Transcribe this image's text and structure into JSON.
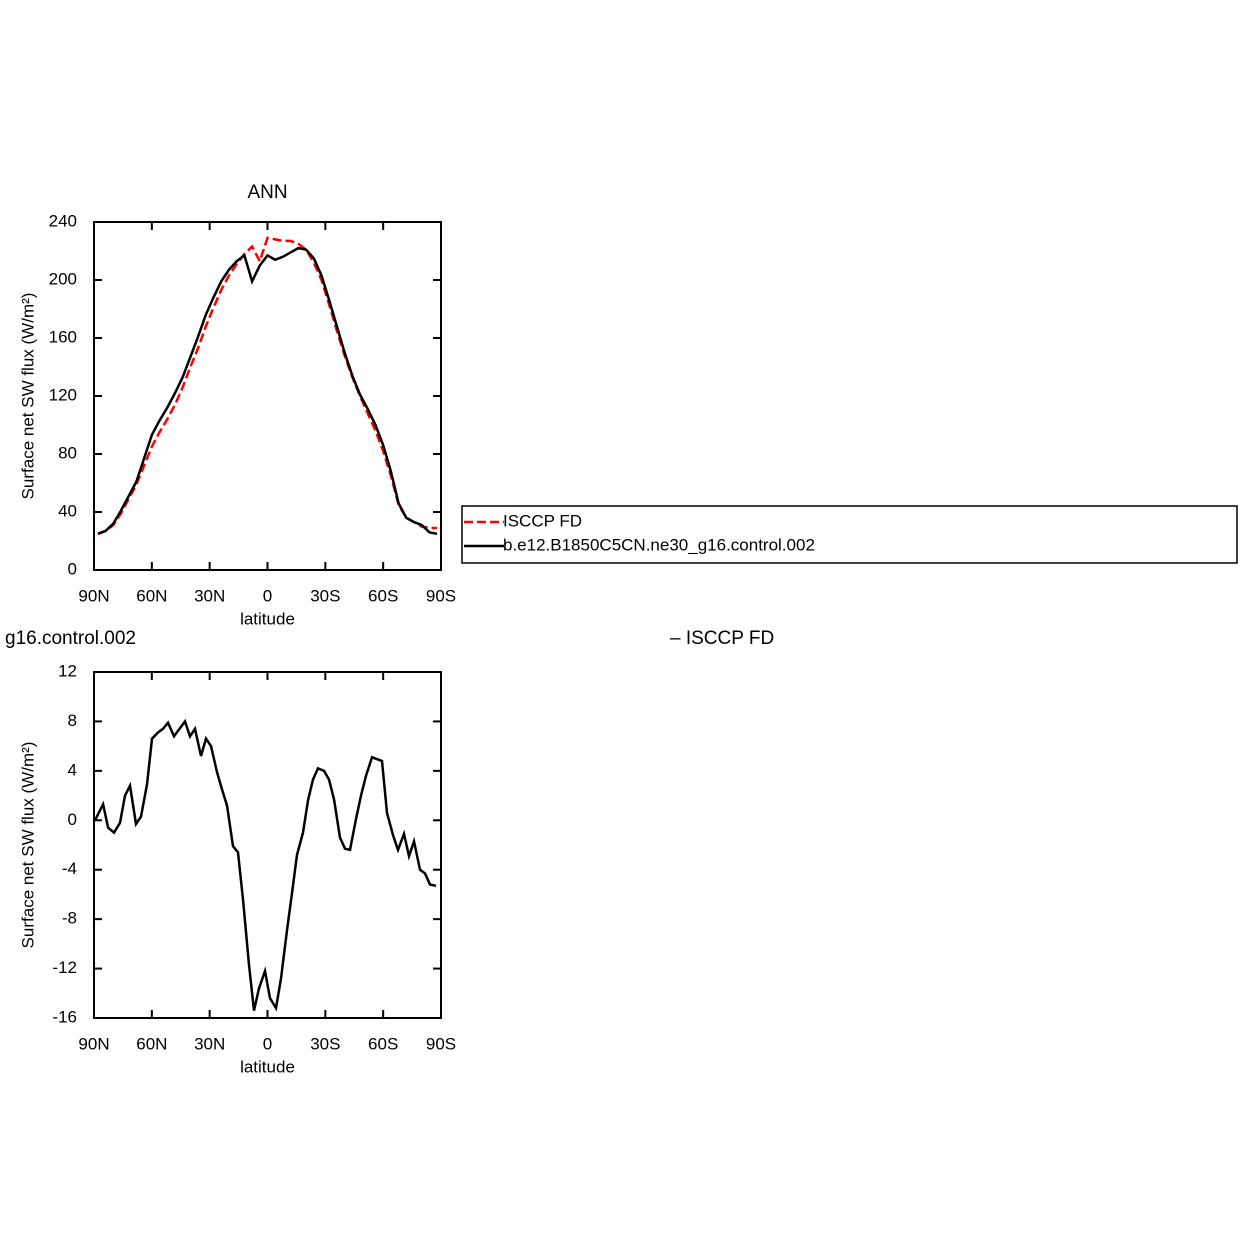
{
  "chart_data": [
    {
      "type": "line",
      "title": "ANN",
      "xlabel": "latitude",
      "ylabel": "Surface net SW flux (W/m²)",
      "x": [
        88,
        84,
        80,
        76,
        72,
        68,
        64,
        60,
        56,
        52,
        48,
        44,
        40,
        36,
        32,
        28,
        24,
        20,
        16,
        12,
        8,
        4,
        0,
        -4,
        -8,
        -12,
        -16,
        -20,
        -24,
        -28,
        -32,
        -36,
        -40,
        -44,
        -48,
        -52,
        -56,
        -60,
        -64,
        -68,
        -72,
        -76,
        -80,
        -84,
        -88
      ],
      "series": [
        {
          "name": "ISCCP FD",
          "color": "#ff0000",
          "dash": true,
          "values": [
            25,
            27,
            31,
            39,
            49,
            59,
            72,
            85,
            95,
            104,
            114,
            126,
            140,
            153,
            168,
            181,
            193,
            203,
            211,
            218,
            223,
            213,
            229,
            228,
            227,
            227,
            225,
            221,
            212,
            200,
            183,
            165,
            148,
            133,
            120,
            108,
            96,
            82,
            65,
            45,
            36,
            33,
            30,
            29,
            29
          ]
        },
        {
          "name": "b.e12.B1850C5CN.ne30_g16.control.002",
          "color": "#000000",
          "dash": false,
          "values": [
            25,
            27,
            32,
            41,
            51,
            61,
            77,
            93,
            103,
            112,
            122,
            133,
            147,
            161,
            176,
            188,
            199,
            207,
            213,
            217,
            199,
            210,
            217,
            214,
            216,
            219,
            222,
            221,
            215,
            203,
            186,
            168,
            150,
            134,
            121,
            111,
            100,
            86,
            68,
            46,
            36,
            33,
            31,
            26,
            25
          ]
        }
      ],
      "xlim": [
        90,
        -90
      ],
      "xticks": [
        {
          "value": 90,
          "label": "90N"
        },
        {
          "value": 60,
          "label": "60N"
        },
        {
          "value": 30,
          "label": "30N"
        },
        0,
        {
          "value": -30,
          "label": "30S"
        },
        {
          "value": -60,
          "label": "60S"
        },
        {
          "value": -90,
          "label": "90S"
        }
      ],
      "ylim": [
        0,
        240
      ],
      "yticks": [
        0,
        40,
        80,
        120,
        160,
        200,
        240
      ],
      "legend": "right"
    },
    {
      "type": "line",
      "subtitle_left": "g16.control.002",
      "subtitle_right": "– ISCCP FD",
      "xlabel": "latitude",
      "ylabel": "Surface net SW flux (W/m²)",
      "color": "#000000",
      "x": [
        89.5,
        85.3,
        82.7,
        79.6,
        76.5,
        73.9,
        71.3,
        68.2,
        65.6,
        62.5,
        59.9,
        56.8,
        54.2,
        51.6,
        48.5,
        42.8,
        40.2,
        37.6,
        34.5,
        31.9,
        29.3,
        26.2,
        23.6,
        21.0,
        17.9,
        15.3,
        12.7,
        9.6,
        7.0,
        4.4,
        1.3,
        -1.3,
        -4.4,
        -7.0,
        -10.1,
        -12.7,
        -15.3,
        -18.4,
        -21.0,
        -23.6,
        -26.2,
        -29.3,
        -31.9,
        -34.5,
        -37.6,
        -40.2,
        -42.8,
        -45.9,
        -48.5,
        -51.1,
        -54.2,
        -59.4,
        -62.0,
        -65.1,
        -67.7,
        -70.8,
        -73.4,
        -76.0,
        -79.1,
        -81.7,
        -84.3,
        -87.4
      ],
      "values": [
        0.0,
        1.3,
        -0.6,
        -1.0,
        -0.2,
        2.0,
        2.8,
        -0.3,
        0.3,
        2.9,
        6.6,
        7.1,
        7.4,
        7.9,
        6.8,
        8.0,
        6.8,
        7.4,
        5.2,
        6.6,
        6.0,
        3.9,
        2.5,
        1.2,
        -2.1,
        -2.6,
        -6.4,
        -11.7,
        -15.4,
        -13.6,
        -12.2,
        -14.4,
        -15.2,
        -12.8,
        -8.9,
        -5.9,
        -2.8,
        -1.0,
        1.6,
        3.3,
        4.2,
        4.0,
        3.3,
        1.7,
        -1.4,
        -2.3,
        -2.4,
        0.1,
        2.0,
        3.6,
        5.1,
        4.8,
        0.6,
        -1.2,
        -2.4,
        -1.1,
        -2.9,
        -1.7,
        -4.0,
        -4.3,
        -5.2,
        -5.3
      ],
      "xlim": [
        90,
        -90
      ],
      "xticks": [
        {
          "value": 90,
          "label": "90N"
        },
        {
          "value": 60,
          "label": "60N"
        },
        {
          "value": 30,
          "label": "30N"
        },
        0,
        {
          "value": -30,
          "label": "30S"
        },
        {
          "value": -60,
          "label": "60S"
        },
        {
          "value": -90,
          "label": "90S"
        }
      ],
      "ylim": [
        -16,
        12
      ],
      "yticks": [
        -16,
        -12,
        -8,
        -4,
        0,
        4,
        8,
        12
      ]
    }
  ]
}
